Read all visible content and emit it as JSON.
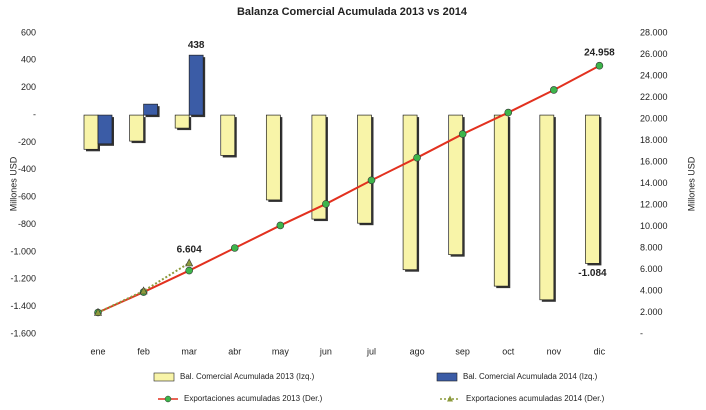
{
  "chart_data": {
    "type": "bar",
    "title": "Balanza Comercial Acumulada 2013 vs 2014",
    "ylabel": "Millones USD",
    "y2label": "Millones USD",
    "categories": [
      "ene",
      "feb",
      "mar",
      "abr",
      "may",
      "jun",
      "jul",
      "ago",
      "sep",
      "oct",
      "nov",
      "dic"
    ],
    "series": [
      {
        "name": "Bal. Comercial Acumulada 2013 (Izq.)",
        "type": "bar",
        "color": "#f8f4a8",
        "values": [
          -250,
          -190,
          -95,
          -295,
          -620,
          -760,
          -790,
          -1130,
          -1020,
          -1250,
          -1350,
          -1084
        ],
        "value_labels": [
          null,
          null,
          null,
          null,
          null,
          null,
          null,
          null,
          null,
          null,
          null,
          "-1.084"
        ]
      },
      {
        "name": "Bal. Comercial Acumulada 2014 (Izq.)",
        "type": "bar",
        "color": "#3b5ca6",
        "values": [
          -210,
          80,
          438,
          null,
          null,
          null,
          null,
          null,
          null,
          null,
          null,
          null
        ],
        "value_labels": [
          null,
          null,
          "438",
          null,
          null,
          null,
          null,
          null,
          null,
          null,
          null,
          null
        ]
      },
      {
        "name": "Exportaciones acumuladas 2013 (Der.)",
        "type": "line",
        "axis": "y2",
        "color": "#e2311f",
        "marker_color": "#3db54b",
        "values": [
          2000,
          3900,
          5900,
          8000,
          10100,
          12100,
          14300,
          16400,
          18600,
          20600,
          22700,
          24958
        ],
        "value_labels": [
          null,
          null,
          null,
          null,
          null,
          null,
          null,
          null,
          null,
          null,
          null,
          "24.958"
        ]
      },
      {
        "name": "Exportaciones acumuladas 2014 (Der.)",
        "type": "line",
        "axis": "y2",
        "color": "#8c9a3c",
        "marker_color": "#8c9a3c",
        "dashed": true,
        "values": [
          2000,
          4000,
          6604,
          null,
          null,
          null,
          null,
          null,
          null,
          null,
          null,
          null
        ],
        "value_labels": [
          null,
          null,
          "6.604",
          null,
          null,
          null,
          null,
          null,
          null,
          null,
          null,
          null
        ]
      }
    ],
    "ylim": [
      -1600,
      600
    ],
    "yticks": [
      {
        "value": -1600,
        "label": "-1.600"
      },
      {
        "value": -1400,
        "label": "-1.400"
      },
      {
        "value": -1200,
        "label": "-1.200"
      },
      {
        "value": -1000,
        "label": "-1.000"
      },
      -800,
      -600,
      -400,
      -200,
      {
        "value": 0,
        "label": "-"
      },
      200,
      400,
      600
    ],
    "y2lim": [
      0,
      28000
    ],
    "y2ticks": [
      {
        "value": 0,
        "label": "-"
      },
      {
        "value": 2000,
        "label": "2.000"
      },
      {
        "value": 4000,
        "label": "4.000"
      },
      {
        "value": 6000,
        "label": "6.000"
      },
      {
        "value": 8000,
        "label": "8.000"
      },
      {
        "value": 10000,
        "label": "10.000"
      },
      {
        "value": 12000,
        "label": "12.000"
      },
      {
        "value": 14000,
        "label": "14.000"
      },
      {
        "value": 16000,
        "label": "16.000"
      },
      {
        "value": 18000,
        "label": "18.000"
      },
      {
        "value": 20000,
        "label": "20.000"
      },
      {
        "value": 22000,
        "label": "22.000"
      },
      {
        "value": 24000,
        "label": "24.000"
      },
      {
        "value": 26000,
        "label": "26.000"
      },
      {
        "value": 28000,
        "label": "28.000"
      }
    ],
    "grid": false
  }
}
